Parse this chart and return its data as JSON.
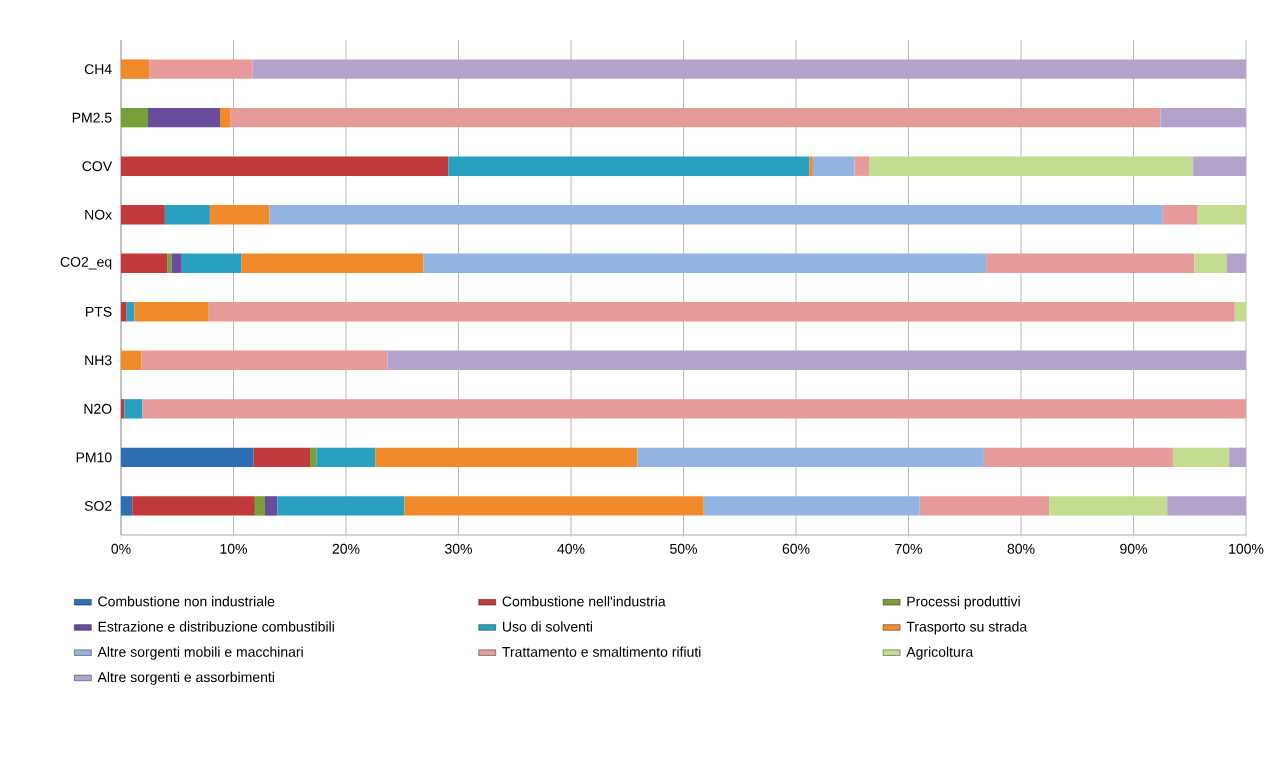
{
  "chart_data": {
    "type": "bar",
    "orientation": "horizontal",
    "stacked": true,
    "grid": "x",
    "legend": "bottom",
    "categories": [
      "CH4",
      "PM2.5",
      "COV",
      "NOx",
      "CO2_eq",
      "PTS",
      "NH3",
      "N2O",
      "PM10",
      "SO2"
    ],
    "xlim": [
      0,
      100
    ],
    "xticks": [
      {
        "value": 0,
        "label": "0%"
      },
      {
        "value": 10,
        "label": "10%"
      },
      {
        "value": 20,
        "label": "20%"
      },
      {
        "value": 30,
        "label": "30%"
      },
      {
        "value": 40,
        "label": "40%"
      },
      {
        "value": 50,
        "label": "50%"
      },
      {
        "value": 60,
        "label": "60%"
      },
      {
        "value": 70,
        "label": "70%"
      },
      {
        "value": 80,
        "label": "80%"
      },
      {
        "value": 90,
        "label": "90%"
      },
      {
        "value": 100,
        "label": "100%"
      }
    ],
    "series": [
      {
        "name": "Combustione non industriale",
        "color": "#2e6eb5",
        "values": [
          null,
          null,
          null,
          null,
          null,
          null,
          null,
          null,
          11.8,
          1.0
        ]
      },
      {
        "name": "Combustione nell'industria",
        "color": "#c0393b",
        "values": [
          null,
          null,
          29.1,
          3.9,
          4.1,
          0.5,
          null,
          0.3,
          5.0,
          10.9
        ]
      },
      {
        "name": "Processi produttivi",
        "color": "#77a03a",
        "values": [
          null,
          2.4,
          null,
          null,
          0.4,
          null,
          null,
          null,
          0.6,
          0.9
        ]
      },
      {
        "name": "Estrazione e distribuzione combustibili",
        "color": "#6a4c9c",
        "values": [
          null,
          6.4,
          null,
          null,
          0.9,
          null,
          null,
          null,
          null,
          1.1
        ]
      },
      {
        "name": "Uso di solventi",
        "color": "#2aa0c0",
        "values": [
          null,
          null,
          32.1,
          4.0,
          5.3,
          0.7,
          null,
          1.6,
          5.2,
          11.3
        ]
      },
      {
        "name": "Trasporto su strada",
        "color": "#f08a2a",
        "values": [
          2.5,
          0.9,
          0.3,
          5.3,
          16.2,
          6.6,
          1.8,
          null,
          23.3,
          26.6
        ]
      },
      {
        "name": "Altre sorgenti mobili e macchinari",
        "color": "#92b4e3",
        "values": [
          null,
          null,
          3.7,
          79.4,
          50.0,
          null,
          null,
          null,
          30.8,
          19.2
        ]
      },
      {
        "name": "Trattamento e smaltimento rifiuti",
        "color": "#e69a9a",
        "values": [
          9.2,
          82.7,
          1.3,
          3.1,
          18.5,
          91.2,
          21.9,
          98.1,
          16.8,
          11.5
        ]
      },
      {
        "name": "Agricoltura",
        "color": "#c3dc8f",
        "values": [
          null,
          null,
          28.8,
          4.3,
          2.9,
          1.0,
          null,
          null,
          5.0,
          10.5
        ]
      },
      {
        "name": "Altre sorgenti e assorbimenti",
        "color": "#b3a2cc",
        "values": [
          88.3,
          7.6,
          4.7,
          null,
          1.7,
          null,
          76.3,
          null,
          1.5,
          7.0
        ]
      }
    ]
  }
}
